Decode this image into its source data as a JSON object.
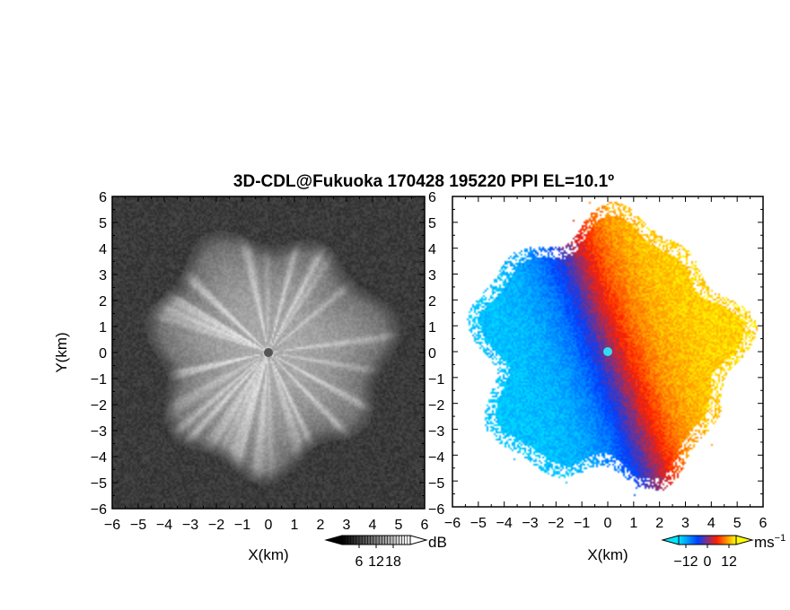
{
  "title": "3D-CDL@Fukuoka 170428 195220 PPI EL=10.1º",
  "chart_data": [
    {
      "type": "heatmap",
      "panel": "left",
      "quantity_hint": "backscatter intensity (dB)",
      "xlabel": "X(km)",
      "ylabel": "Y(km)",
      "xlim": [
        -6,
        6
      ],
      "ylim": [
        -6,
        6
      ],
      "x_ticks": [
        "−6",
        "−5",
        "−4",
        "−3",
        "−2",
        "−1",
        "0",
        "1",
        "2",
        "3",
        "4",
        "5",
        "6"
      ],
      "y_ticks": [
        "6",
        "5",
        "4",
        "3",
        "2",
        "1",
        "0",
        "−1",
        "−2",
        "−3",
        "−4",
        "−5",
        "−6"
      ],
      "colorbar": {
        "unit": "dB",
        "ticks": [
          "6",
          "12",
          "18"
        ],
        "tick_values": [
          6,
          12,
          18
        ],
        "range": [
          0,
          24
        ],
        "colors": [
          "#000000",
          "#ffffff"
        ]
      },
      "echo_radius_km": 4.6,
      "center_marker": {
        "x": 0,
        "y": 0,
        "color": "#555555"
      }
    },
    {
      "type": "heatmap",
      "panel": "right",
      "quantity_hint": "radial Doppler velocity",
      "xlabel": "X(km)",
      "xlim": [
        -6,
        6
      ],
      "ylim": [
        -6,
        6
      ],
      "x_ticks": [
        "−6",
        "−5",
        "−4",
        "−3",
        "−2",
        "−1",
        "0",
        "1",
        "2",
        "3",
        "4",
        "5",
        "6"
      ],
      "y_ticks": [
        "6",
        "5",
        "4",
        "3",
        "2",
        "1",
        "0",
        "−1",
        "−2",
        "−3",
        "−4",
        "−5",
        "−6"
      ],
      "colorbar": {
        "unit": "ms",
        "unit_sup": "−1",
        "ticks": [
          "−12",
          "0",
          "12"
        ],
        "tick_values": [
          -12,
          0,
          12
        ],
        "range": [
          -16,
          16
        ],
        "colors": [
          "#00e5ff",
          "#0040ff",
          "#ff2000",
          "#ffff00"
        ]
      },
      "echo_radius_km": 4.8,
      "zero_line_angle_deg": 110,
      "center_marker": {
        "x": 0,
        "y": 0,
        "color": "#33ddee"
      }
    }
  ]
}
